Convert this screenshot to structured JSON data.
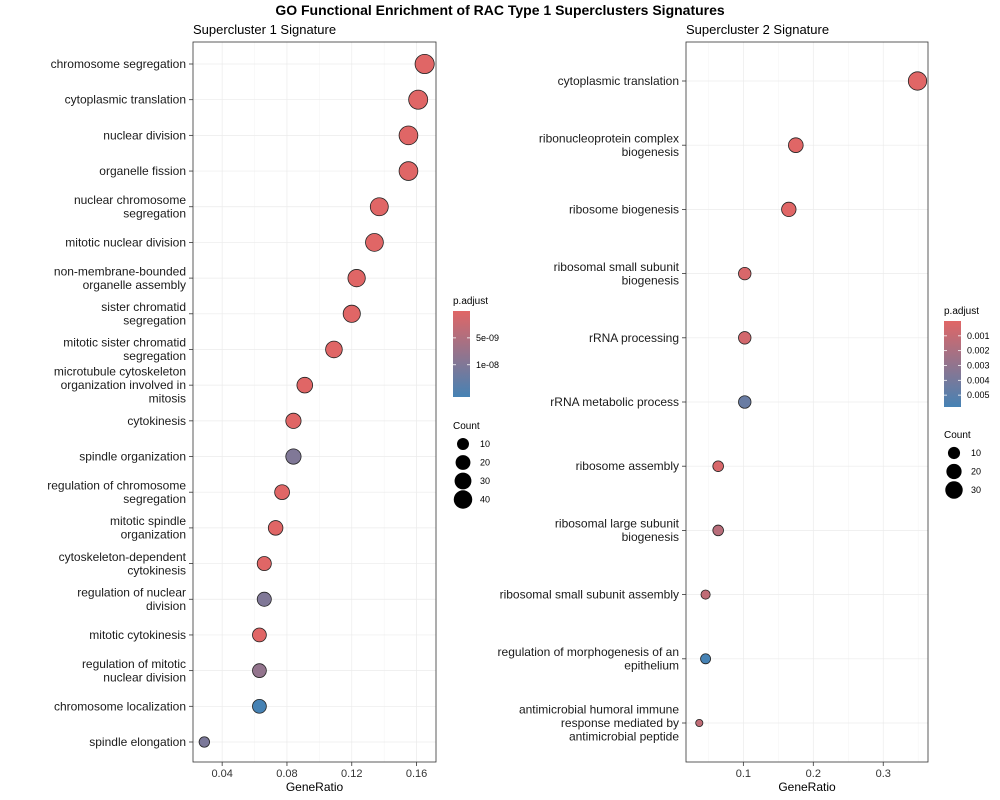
{
  "figure": {
    "title": "GO Functional Enrichment of RAC Type 1 Superclusters Signatures"
  },
  "colors": {
    "high": "#e06666",
    "low": "#4682b4"
  },
  "chart_data": [
    {
      "type": "scatter",
      "title": "Supercluster 1 Signature",
      "xlabel": "GeneRatio",
      "ylabel": "",
      "xlim": [
        0.022,
        0.172
      ],
      "xticks": [
        0.04,
        0.08,
        0.12,
        0.16
      ],
      "xtick_labels": [
        "0.04",
        "0.08",
        "0.12",
        "0.16"
      ],
      "grid": true,
      "legend_placement": "right",
      "points": [
        {
          "term": "chromosome segregation",
          "x": 0.165,
          "count": 45,
          "p": 0.0
        },
        {
          "term": "cytoplasmic translation",
          "x": 0.161,
          "count": 44,
          "p": 0.0
        },
        {
          "term": "nuclear division",
          "x": 0.155,
          "count": 42,
          "p": 0.0
        },
        {
          "term": "organelle fission",
          "x": 0.155,
          "count": 42,
          "p": 0.0
        },
        {
          "term": "nuclear chromosome segregation",
          "x": 0.137,
          "count": 37,
          "p": 0.0
        },
        {
          "term": "mitotic nuclear division",
          "x": 0.134,
          "count": 36,
          "p": 0.0
        },
        {
          "term": "non-membrane-bounded organelle assembly",
          "x": 0.123,
          "count": 33,
          "p": 0.0
        },
        {
          "term": "sister chromatid segregation",
          "x": 0.12,
          "count": 32,
          "p": 0.0
        },
        {
          "term": "mitotic sister chromatid segregation",
          "x": 0.109,
          "count": 29,
          "p": 0.0
        },
        {
          "term": "microtubule cytoskeleton organization involved in mitosis",
          "x": 0.091,
          "count": 24,
          "p": 0.0
        },
        {
          "term": "cytokinesis",
          "x": 0.084,
          "count": 22,
          "p": 0.0
        },
        {
          "term": "spindle organization",
          "x": 0.084,
          "count": 22,
          "p": 1e-08
        },
        {
          "term": "regulation of chromosome segregation",
          "x": 0.077,
          "count": 20,
          "p": 0.0
        },
        {
          "term": "mitotic spindle organization",
          "x": 0.073,
          "count": 19,
          "p": 0.0
        },
        {
          "term": "cytoskeleton-dependent cytokinesis",
          "x": 0.066,
          "count": 17,
          "p": 0.0
        },
        {
          "term": "regulation of nuclear division",
          "x": 0.066,
          "count": 17,
          "p": 1e-08
        },
        {
          "term": "mitotic cytokinesis",
          "x": 0.063,
          "count": 16,
          "p": 0.0
        },
        {
          "term": "regulation of mitotic nuclear division",
          "x": 0.063,
          "count": 16,
          "p": 8e-09
        },
        {
          "term": "chromosome localization",
          "x": 0.063,
          "count": 16,
          "p": 1.6e-08
        },
        {
          "term": "spindle elongation",
          "x": 0.029,
          "count": 7,
          "p": 1.05e-08
        }
      ],
      "legend": {
        "color_title": "p.adjust",
        "color_range": [
          0,
          1.6e-08
        ],
        "color_ticks": [
          5e-09,
          1e-08
        ],
        "color_tick_labels": [
          "5e-09",
          "1e-08"
        ],
        "size_title": "Count",
        "size_range": [
          5,
          45
        ],
        "size_ticks": [
          10,
          20,
          30,
          40
        ],
        "size_tick_labels": [
          "10",
          "20",
          "30",
          "40"
        ]
      }
    },
    {
      "type": "scatter",
      "title": "Supercluster 2 Signature",
      "xlabel": "GeneRatio",
      "ylabel": "",
      "xlim": [
        0.018,
        0.364
      ],
      "xticks": [
        0.1,
        0.2,
        0.3
      ],
      "xtick_labels": [
        "0.1",
        "0.2",
        "0.3"
      ],
      "grid": true,
      "legend_placement": "right",
      "points": [
        {
          "term": "cytoplasmic translation",
          "x": 0.349,
          "count": 35,
          "p": 0.0
        },
        {
          "term": "ribonucleoprotein complex biogenesis",
          "x": 0.175,
          "count": 18,
          "p": 0.0
        },
        {
          "term": "ribosome biogenesis",
          "x": 0.165,
          "count": 17,
          "p": 0.0
        },
        {
          "term": "ribosomal small subunit biogenesis",
          "x": 0.102,
          "count": 11,
          "p": 0.0003
        },
        {
          "term": "rRNA processing",
          "x": 0.102,
          "count": 11,
          "p": 0.0005
        },
        {
          "term": "rRNA metabolic process",
          "x": 0.102,
          "count": 11,
          "p": 0.0045
        },
        {
          "term": "ribosome assembly",
          "x": 0.064,
          "count": 7,
          "p": 0.0003
        },
        {
          "term": "ribosomal large subunit biogenesis",
          "x": 0.064,
          "count": 7,
          "p": 0.0015
        },
        {
          "term": "ribosomal small subunit assembly",
          "x": 0.046,
          "count": 5,
          "p": 0.0012
        },
        {
          "term": "regulation of morphogenesis of an epithelium",
          "x": 0.046,
          "count": 6,
          "p": 0.0058
        },
        {
          "term": "antimicrobial humoral immune response mediated by antimicrobial peptide",
          "x": 0.037,
          "count": 4,
          "p": 0.0012
        }
      ],
      "legend": {
        "color_title": "p.adjust",
        "color_range": [
          0.0,
          0.0058
        ],
        "color_ticks": [
          0.001,
          0.002,
          0.003,
          0.004,
          0.005
        ],
        "color_tick_labels": [
          "0.001",
          "0.002",
          "0.003",
          "0.004",
          "0.005"
        ],
        "size_title": "Count",
        "size_range": [
          4,
          35
        ],
        "size_ticks": [
          10,
          20,
          30
        ],
        "size_tick_labels": [
          "10",
          "20",
          "30"
        ]
      }
    }
  ]
}
